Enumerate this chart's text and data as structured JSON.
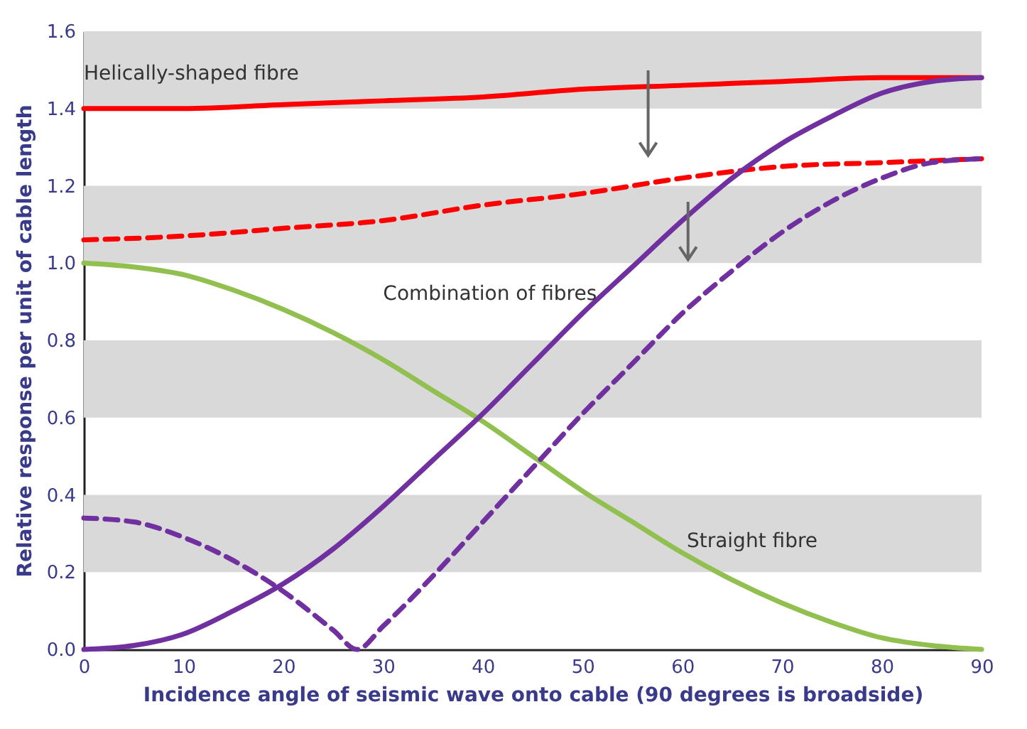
{
  "chart_data": {
    "type": "line",
    "xlabel": "Incidence angle of seismic wave onto cable (90 degrees is broadside)",
    "ylabel": "Relative response per unit of cable length",
    "xlim": [
      0,
      90
    ],
    "xticks": [
      0,
      10,
      20,
      30,
      40,
      50,
      60,
      70,
      80,
      90
    ],
    "ylim": [
      0,
      1.6
    ],
    "yticks": [
      {
        "value": 0,
        "label": "0.0"
      },
      0.2,
      0.4,
      0.6,
      0.8,
      {
        "value": 1,
        "label": "1.0"
      },
      1.2,
      1.4,
      1.6
    ],
    "x": [
      0,
      5,
      10,
      15,
      20,
      25,
      30,
      35,
      40,
      45,
      50,
      55,
      60,
      65,
      70,
      75,
      80,
      85,
      90
    ],
    "bands": [
      {
        "axis": "y",
        "from": 0.2,
        "to": 0.4,
        "color": "#d9d9d9"
      },
      {
        "axis": "y",
        "from": 0.6,
        "to": 0.8,
        "color": "#d9d9d9"
      },
      {
        "axis": "y",
        "from": 1.0,
        "to": 1.2,
        "color": "#d9d9d9"
      },
      {
        "axis": "y",
        "from": 1.4,
        "to": 1.6,
        "color": "#d9d9d9"
      }
    ],
    "series": [
      {
        "name": "Helically-shaped fibre",
        "color": "#ff0000",
        "line_style": "solid",
        "x": [
          0,
          10,
          20,
          30,
          40,
          50,
          60,
          70,
          80,
          90
        ],
        "values": [
          1.4,
          1.4,
          1.41,
          1.42,
          1.43,
          1.45,
          1.46,
          1.47,
          1.48,
          1.48
        ]
      },
      {
        "color": "#ff0000",
        "line_style": "dashed",
        "x": [
          0,
          10,
          20,
          30,
          40,
          50,
          60,
          70,
          80,
          90
        ],
        "values": [
          1.06,
          1.07,
          1.09,
          1.11,
          1.15,
          1.18,
          1.22,
          1.25,
          1.26,
          1.27
        ]
      },
      {
        "name": "Straight fibre",
        "color": "#92c050",
        "line_style": "solid",
        "values": [
          1.0,
          0.99,
          0.97,
          0.93,
          0.88,
          0.82,
          0.75,
          0.67,
          0.59,
          0.5,
          0.41,
          0.33,
          0.25,
          0.18,
          0.12,
          0.07,
          0.03,
          0.01,
          0.0
        ]
      },
      {
        "name": "Combination of fibres",
        "color": "#7030a0",
        "line_style": "solid",
        "values": [
          0.0,
          0.01,
          0.04,
          0.1,
          0.17,
          0.26,
          0.37,
          0.49,
          0.61,
          0.74,
          0.87,
          0.99,
          1.11,
          1.22,
          1.31,
          1.38,
          1.44,
          1.47,
          1.48
        ]
      },
      {
        "color": "#7030a0",
        "line_style": "dashed",
        "x": [
          0,
          5,
          10,
          15,
          20,
          25,
          27.4,
          30,
          35,
          40,
          45,
          50,
          55,
          60,
          65,
          70,
          75,
          80,
          85,
          90
        ],
        "values": [
          0.34,
          0.33,
          0.29,
          0.23,
          0.15,
          0.05,
          0.0,
          0.06,
          0.19,
          0.33,
          0.47,
          0.61,
          0.74,
          0.87,
          0.98,
          1.08,
          1.16,
          1.22,
          1.26,
          1.27
        ]
      }
    ]
  }
}
